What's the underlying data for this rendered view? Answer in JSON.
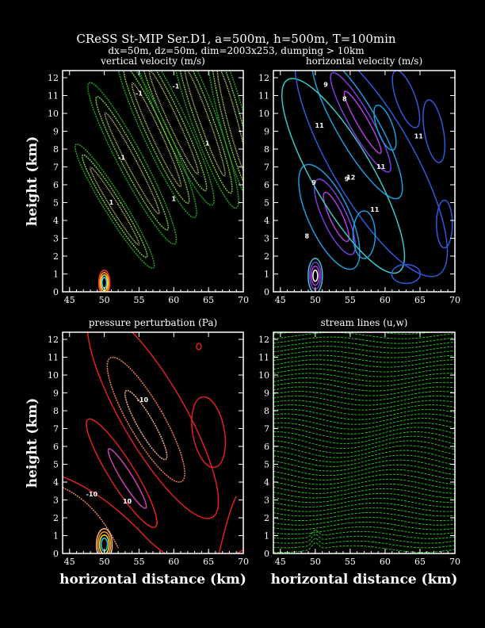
{
  "figure": {
    "title": "CReSS St-MIP Ser.D1, a=500m, h=500m, T=100min",
    "subtitle": "dx=50m, dz=50m, dim=2003x253, dumping > 10km"
  },
  "chart_data": [
    {
      "type": "contour",
      "title": "vertical velocity (m/s)",
      "xlabel": "",
      "ylabel": "height (km)",
      "xlim": [
        44,
        70
      ],
      "ylim": [
        0,
        12.4
      ],
      "xticks": [
        "45",
        "50",
        "55",
        "60",
        "65",
        "70"
      ],
      "yticks": [
        "0",
        "1",
        "2",
        "3",
        "4",
        "5",
        "6",
        "7",
        "8",
        "9",
        "10",
        "11",
        "12"
      ],
      "contour_labels": [
        "-1",
        "-1",
        "-1",
        "1",
        "1",
        "1"
      ],
      "colors": [
        "#1fa01f",
        "#7ac83c",
        "#d2e66e"
      ]
    },
    {
      "type": "contour",
      "title": "horizontal velocity (m/s)",
      "xlabel": "",
      "ylabel": "",
      "xlim": [
        44,
        70
      ],
      "ylim": [
        0,
        12.4
      ],
      "xticks": [
        "45",
        "50",
        "55",
        "60",
        "65",
        "70"
      ],
      "yticks": [
        "0",
        "1",
        "2",
        "3",
        "4",
        "5",
        "6",
        "7",
        "8",
        "9",
        "10",
        "11",
        "12"
      ],
      "contour_labels": [
        "9",
        "8",
        "11",
        "11",
        "12",
        "9",
        "9",
        "11",
        "11",
        "8"
      ],
      "colors": [
        "#2e5adc",
        "#1e9bdc",
        "#38c8c8",
        "#7a3cdc",
        "#b43cdc"
      ]
    },
    {
      "type": "contour",
      "title": "pressure perturbation (Pa)",
      "xlabel": "horizontal distance (km)",
      "ylabel": "height (km)",
      "xlim": [
        44,
        70
      ],
      "ylim": [
        0,
        12.4
      ],
      "xticks": [
        "45",
        "50",
        "55",
        "60",
        "65",
        "70"
      ],
      "yticks": [
        "0",
        "1",
        "2",
        "3",
        "4",
        "5",
        "6",
        "7",
        "8",
        "9",
        "10",
        "11",
        "12"
      ],
      "contour_labels": [
        "-10",
        "-10",
        "10"
      ],
      "colors": [
        "#e02020",
        "#f08050",
        "#f5b090",
        "#d040b0"
      ]
    },
    {
      "type": "streamline",
      "title": "stream lines (u,w)",
      "xlabel": "horizontal distance (km)",
      "ylabel": "",
      "xlim": [
        44,
        70
      ],
      "ylim": [
        0,
        12.4
      ],
      "xticks": [
        "45",
        "50",
        "55",
        "60",
        "65",
        "70"
      ],
      "yticks": [
        "0",
        "1",
        "2",
        "3",
        "4",
        "5",
        "6",
        "7",
        "8",
        "9",
        "10",
        "11",
        "12"
      ],
      "colors": [
        "#22d622"
      ]
    }
  ]
}
